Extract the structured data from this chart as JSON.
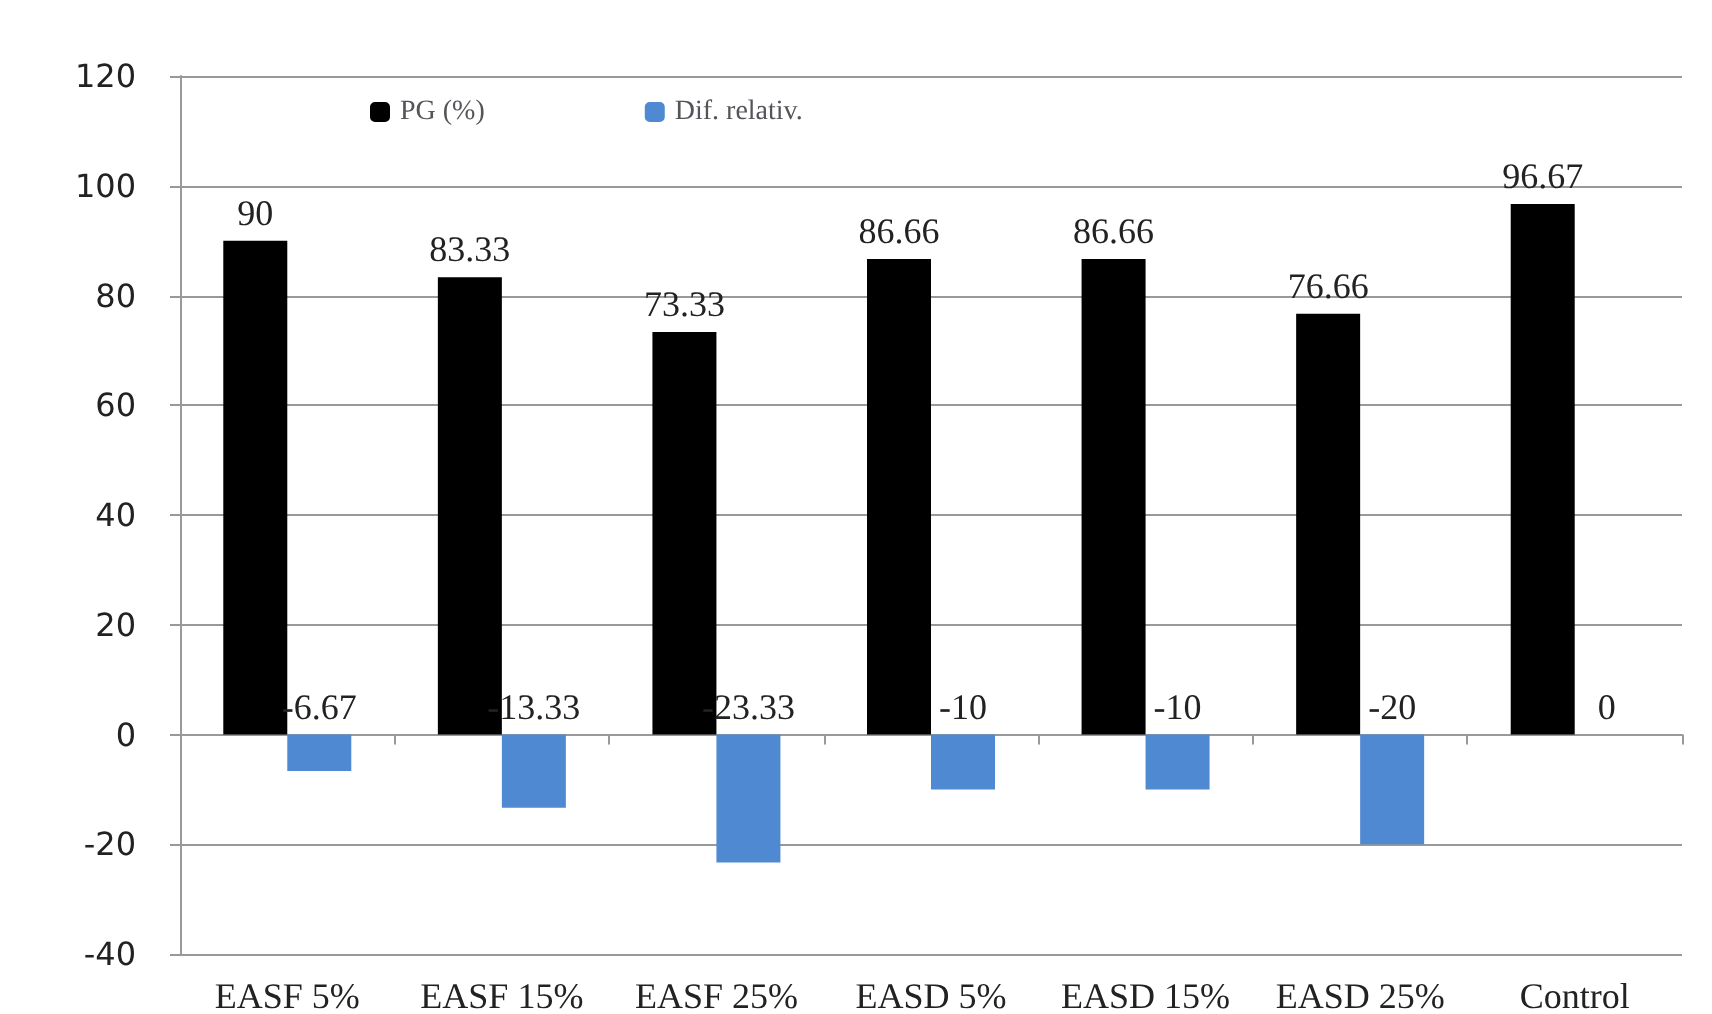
{
  "chart_data": {
    "type": "bar",
    "categories": [
      "EASF 5%",
      "EASF 15%",
      "EASF 25%",
      "EASD 5%",
      "EASD 15%",
      "EASD 25%",
      "Control"
    ],
    "series": [
      {
        "name": "PG (%)",
        "color": "#000000",
        "values": [
          90,
          83.33,
          73.33,
          86.66,
          86.66,
          76.66,
          96.67
        ]
      },
      {
        "name": "Dif. relativ.",
        "color": "#4f89d1",
        "values": [
          -6.67,
          -13.33,
          -23.33,
          -10,
          -10,
          -20,
          0
        ]
      }
    ],
    "ylim": [
      -40,
      120
    ],
    "yticks": [
      -40,
      -20,
      0,
      20,
      40,
      60,
      80,
      100,
      120
    ],
    "grid": "y",
    "legend": "top",
    "data_labels": true
  }
}
